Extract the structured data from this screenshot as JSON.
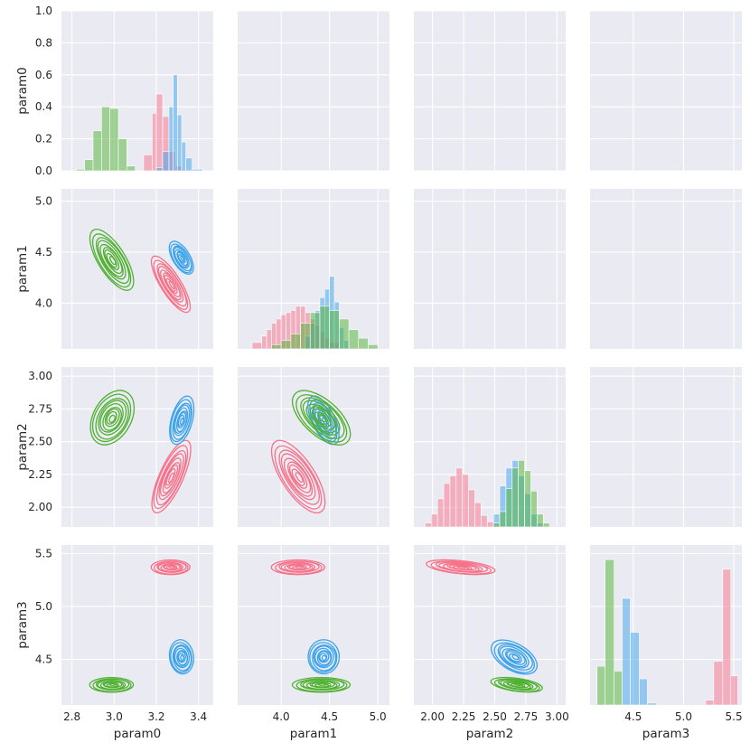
{
  "chart_data": {
    "type": "pairplot",
    "params": [
      "param0",
      "param1",
      "param2",
      "param3"
    ],
    "series_colors": [
      "#f77189",
      "#36ada4",
      "#3ba3ec",
      "#50b131"
    ],
    "axes": {
      "param0": {
        "range": [
          2.75,
          3.47
        ],
        "ticks": [
          2.8,
          3.0,
          3.2,
          3.4
        ],
        "tick_labels": [
          "2.8",
          "3.0",
          "3.2",
          "3.4"
        ]
      },
      "param1": {
        "range": [
          3.55,
          5.12
        ],
        "ticks": [
          4.0,
          4.5,
          5.0
        ],
        "tick_labels": [
          "4.0",
          "4.5",
          "5.0"
        ]
      },
      "param2": {
        "range": [
          1.85,
          3.07
        ],
        "ticks": [
          2.0,
          2.25,
          2.5,
          2.75,
          3.0
        ],
        "tick_labels": [
          "2.00",
          "2.25",
          "2.50",
          "2.75",
          "3.00"
        ]
      },
      "param3": {
        "range": [
          4.07,
          5.58
        ],
        "ticks": [
          4.5,
          5.0,
          5.5
        ],
        "tick_labels": [
          "4.5",
          "5.0",
          "5.5"
        ]
      }
    },
    "diag_density_axis": {
      "range": [
        0,
        1.0
      ],
      "ticks": [
        0.0,
        0.2,
        0.4,
        0.6,
        0.8,
        1.0
      ],
      "tick_labels": [
        "0.0",
        "0.2",
        "0.4",
        "0.6",
        "0.8",
        "1.0"
      ]
    },
    "y_tick_labels": {
      "param1": [
        "4.0",
        "4.5",
        "5.0"
      ],
      "param2": [
        "2.00",
        "2.25",
        "2.50",
        "2.75",
        "3.00"
      ],
      "param3": [
        "4.5",
        "5.0",
        "5.5"
      ]
    },
    "histograms": {
      "param0": [
        {
          "series": 0,
          "bins": [
            3.14,
            3.18,
            3.2,
            3.23,
            3.26,
            3.29,
            3.32,
            3.35,
            3.38
          ],
          "heights": [
            0.1,
            0.36,
            0.48,
            0.34,
            0.12,
            0.03,
            0.01,
            0.0
          ]
        },
        {
          "series": 2,
          "bins": [
            3.2,
            3.23,
            3.26,
            3.28,
            3.3,
            3.32,
            3.34,
            3.37,
            3.42
          ],
          "heights": [
            0.02,
            0.12,
            0.4,
            0.6,
            0.35,
            0.18,
            0.08,
            0.01
          ]
        },
        {
          "series": 3,
          "bins": [
            2.82,
            2.86,
            2.9,
            2.94,
            2.98,
            3.02,
            3.06,
            3.1
          ],
          "heights": [
            0.01,
            0.07,
            0.25,
            0.4,
            0.39,
            0.2,
            0.03
          ]
        }
      ],
      "param1": [
        {
          "series": 0,
          "bins": [
            3.7,
            3.8,
            3.85,
            3.9,
            3.95,
            4.0,
            4.05,
            4.1,
            4.15,
            4.2,
            4.25,
            4.3,
            4.35,
            4.4,
            4.45,
            4.5,
            4.6
          ],
          "heights": [
            0.03,
            0.06,
            0.09,
            0.12,
            0.14,
            0.16,
            0.17,
            0.18,
            0.2,
            0.2,
            0.17,
            0.14,
            0.11,
            0.08,
            0.05,
            0.03
          ]
        },
        {
          "series": 2,
          "bins": [
            4.25,
            4.3,
            4.35,
            4.4,
            4.45,
            4.5,
            4.55,
            4.6,
            4.65,
            4.7
          ],
          "heights": [
            0.06,
            0.12,
            0.18,
            0.24,
            0.28,
            0.34,
            0.22,
            0.1,
            0.04
          ]
        },
        {
          "series": 3,
          "bins": [
            3.9,
            4.0,
            4.1,
            4.2,
            4.3,
            4.4,
            4.5,
            4.6,
            4.7,
            4.8,
            4.9,
            5.0
          ],
          "heights": [
            0.02,
            0.04,
            0.07,
            0.12,
            0.17,
            0.2,
            0.18,
            0.14,
            0.09,
            0.05,
            0.02
          ]
        }
      ],
      "param2": [
        {
          "series": 0,
          "bins": [
            1.94,
            1.99,
            2.04,
            2.09,
            2.14,
            2.19,
            2.24,
            2.29,
            2.34,
            2.39,
            2.44,
            2.49,
            2.54
          ],
          "heights": [
            0.03,
            0.1,
            0.22,
            0.34,
            0.4,
            0.46,
            0.41,
            0.29,
            0.19,
            0.09,
            0.04,
            0.01
          ]
        },
        {
          "series": 2,
          "bins": [
            2.49,
            2.54,
            2.59,
            2.64,
            2.69,
            2.74,
            2.79,
            2.84,
            2.89
          ],
          "heights": [
            0.1,
            0.32,
            0.46,
            0.52,
            0.4,
            0.26,
            0.1,
            0.03
          ]
        },
        {
          "series": 3,
          "bins": [
            2.49,
            2.54,
            2.59,
            2.64,
            2.69,
            2.74,
            2.79,
            2.84,
            2.89,
            2.94
          ],
          "heights": [
            0.03,
            0.12,
            0.3,
            0.46,
            0.52,
            0.44,
            0.28,
            0.1,
            0.03
          ]
        }
      ],
      "param3": [
        {
          "series": 3,
          "bins": [
            4.14,
            4.22,
            4.31,
            4.39
          ],
          "heights": [
            0.4,
            1.5,
            0.35
          ]
        },
        {
          "series": 2,
          "bins": [
            4.39,
            4.47,
            4.56,
            4.64,
            4.73
          ],
          "heights": [
            1.1,
            0.75,
            0.27,
            0.02
          ]
        },
        {
          "series": 0,
          "bins": [
            5.22,
            5.3,
            5.39,
            5.47,
            5.54
          ],
          "heights": [
            0.05,
            0.45,
            1.4,
            0.3
          ]
        }
      ]
    },
    "diag_hist_max": {
      "param0": 1.0,
      "param1": 0.75,
      "param2": 1.25,
      "param3": 1.65
    },
    "clusters": [
      {
        "series": 0,
        "mean": {
          "param0": 3.27,
          "param1": 4.18,
          "param2": 2.23,
          "param3": 5.37
        },
        "sd": {
          "param0": 0.04,
          "param1": 0.12,
          "param2": 0.12,
          "param3": 0.03
        }
      },
      {
        "series": 2,
        "mean": {
          "param0": 3.32,
          "param1": 4.44,
          "param2": 2.66,
          "param3": 4.52
        },
        "sd": {
          "param0": 0.025,
          "param1": 0.07,
          "param2": 0.08,
          "param3": 0.07
        }
      },
      {
        "series": 3,
        "mean": {
          "param0": 2.99,
          "param1": 4.42,
          "param2": 2.68,
          "param3": 4.26
        },
        "sd": {
          "param0": 0.045,
          "param1": 0.13,
          "param2": 0.09,
          "param3": 0.03
        }
      }
    ],
    "pair_correlations": {
      "0": {
        "param0|param1": -0.8,
        "param0|param2": 0.75,
        "param0|param3": 0.0,
        "param1|param2": -0.7,
        "param1|param3": 0.0,
        "param2|param3": -0.45
      },
      "2": {
        "param0|param1": -0.6,
        "param0|param2": 0.45,
        "param0|param3": -0.1,
        "param1|param2": -0.6,
        "param1|param3": 0.0,
        "param2|param3": -0.5
      },
      "3": {
        "param0|param1": -0.7,
        "param0|param2": 0.35,
        "param0|param3": 0.0,
        "param1|param2": -0.6,
        "param1|param3": 0.0,
        "param2|param3": -0.45
      }
    },
    "grid": true,
    "background": "#eaeaf2"
  }
}
